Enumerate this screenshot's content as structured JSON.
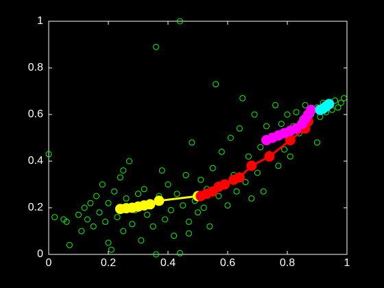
{
  "chart_data": {
    "type": "scatter",
    "xlim": [
      0,
      1
    ],
    "ylim": [
      0,
      1
    ],
    "xticks": [
      0,
      0.2,
      0.4,
      0.6,
      0.8,
      1
    ],
    "yticks": [
      0,
      0.2,
      0.4,
      0.6,
      0.8,
      1
    ],
    "grid": false,
    "background": "#000000",
    "axis_color": "#ffffff",
    "series": [
      {
        "mode": "markers",
        "color": "#00ff00",
        "x": [
          0.0,
          0.02,
          0.05,
          0.06,
          0.07,
          0.1,
          0.11,
          0.12,
          0.13,
          0.14,
          0.15,
          0.16,
          0.17,
          0.18,
          0.19,
          0.2,
          0.2,
          0.21,
          0.22,
          0.23,
          0.24,
          0.25,
          0.26,
          0.27,
          0.28,
          0.29,
          0.3,
          0.31,
          0.32,
          0.33,
          0.34,
          0.35,
          0.36,
          0.37,
          0.38,
          0.39,
          0.4,
          0.41,
          0.42,
          0.43,
          0.44,
          0.45,
          0.46,
          0.47,
          0.48,
          0.49,
          0.5,
          0.51,
          0.52,
          0.53,
          0.54,
          0.55,
          0.56,
          0.57,
          0.58,
          0.59,
          0.6,
          0.61,
          0.62,
          0.63,
          0.64,
          0.65,
          0.66,
          0.67,
          0.68,
          0.69,
          0.7,
          0.71,
          0.72,
          0.73,
          0.74,
          0.75,
          0.76,
          0.77,
          0.78,
          0.79,
          0.8,
          0.81,
          0.82,
          0.83,
          0.84,
          0.85,
          0.86,
          0.87,
          0.88,
          0.89,
          0.9,
          0.9,
          0.91,
          0.92,
          0.93,
          0.94,
          0.95,
          0.96,
          0.97,
          0.98,
          0.99,
          0.44,
          0.36,
          0.25,
          0.47
        ],
        "values": [
          0.43,
          0.16,
          0.15,
          0.14,
          0.04,
          0.17,
          0.1,
          0.2,
          0.15,
          0.22,
          0.12,
          0.25,
          0.18,
          0.3,
          0.14,
          0.22,
          0.05,
          0.02,
          0.27,
          0.16,
          0.33,
          0.1,
          0.24,
          0.4,
          0.13,
          0.19,
          0.26,
          0.06,
          0.28,
          0.17,
          0.22,
          0.12,
          0.89,
          0.25,
          0.36,
          0.15,
          0.3,
          0.19,
          0.08,
          0.26,
          1.0,
          0.21,
          0.34,
          0.14,
          0.48,
          0.23,
          0.18,
          0.32,
          0.2,
          0.28,
          0.12,
          0.37,
          0.73,
          0.25,
          0.44,
          0.3,
          0.21,
          0.5,
          0.34,
          0.27,
          0.54,
          0.67,
          0.31,
          0.42,
          0.24,
          0.6,
          0.35,
          0.46,
          0.27,
          0.55,
          0.43,
          0.5,
          0.64,
          0.38,
          0.56,
          0.45,
          0.6,
          0.42,
          0.55,
          0.61,
          0.52,
          0.58,
          0.64,
          0.57,
          0.6,
          0.62,
          0.48,
          0.63,
          0.59,
          0.65,
          0.61,
          0.64,
          0.62,
          0.66,
          0.63,
          0.65,
          0.67,
          0.005,
          0.0,
          0.36,
          0.09
        ]
      },
      {
        "mode": "lines+markers",
        "color": "#ffff00",
        "x": [
          0.24,
          0.26,
          0.28,
          0.3,
          0.32,
          0.34,
          0.37,
          0.5
        ],
        "values": [
          0.195,
          0.198,
          0.2,
          0.205,
          0.21,
          0.215,
          0.23,
          0.25
        ]
      },
      {
        "mode": "lines+markers",
        "color": "#ff0000",
        "x": [
          0.51,
          0.53,
          0.55,
          0.57,
          0.59,
          0.62,
          0.64,
          0.68,
          0.74,
          0.81,
          0.86,
          0.87
        ],
        "values": [
          0.25,
          0.26,
          0.27,
          0.29,
          0.3,
          0.32,
          0.33,
          0.38,
          0.42,
          0.49,
          0.54,
          0.57
        ]
      },
      {
        "mode": "lines+markers",
        "color": "#ff00ff",
        "x": [
          0.73,
          0.75,
          0.77,
          0.79,
          0.81,
          0.83,
          0.85,
          0.86,
          0.87,
          0.88
        ],
        "values": [
          0.49,
          0.5,
          0.51,
          0.52,
          0.53,
          0.54,
          0.56,
          0.58,
          0.6,
          0.62
        ]
      },
      {
        "mode": "lines+markers",
        "color": "#00ffff",
        "x": [
          0.91,
          0.92,
          0.93,
          0.94
        ],
        "values": [
          0.62,
          0.625,
          0.635,
          0.645
        ]
      }
    ]
  }
}
